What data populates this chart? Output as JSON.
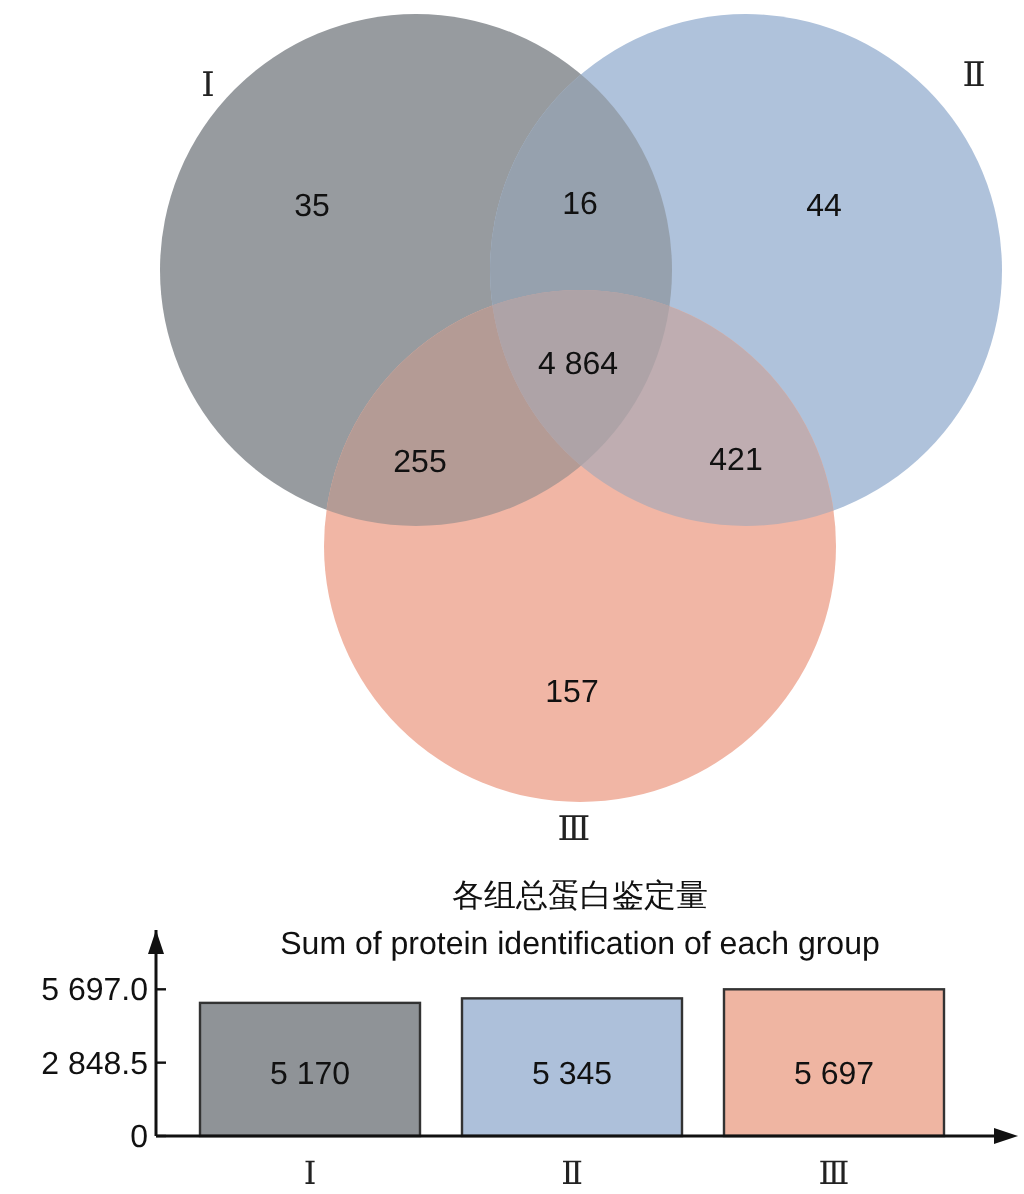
{
  "chart_data": [
    {
      "type": "other",
      "categories": [
        "Ⅰ",
        "Ⅱ",
        "Ⅲ"
      ],
      "colors": [
        "#979b9f",
        "#afc2db",
        "#f1b6a5"
      ],
      "annotations": [
        "35",
        "44",
        "157",
        "16",
        "255",
        "421",
        "4 864"
      ]
    },
    {
      "type": "bar",
      "title": "各组总蛋白鉴定量",
      "subtitle": "Sum of protein identification of each group",
      "categories": [
        "Ⅰ",
        "Ⅱ",
        "Ⅲ"
      ],
      "values": [
        5170,
        5345,
        5697
      ],
      "colors": [
        "#8f9397",
        "#adc0da",
        "#efb5a2"
      ],
      "value_labels": [
        "5 170",
        "5 345",
        "5 697"
      ],
      "ylim": [
        0,
        8000
      ],
      "yticks": [
        {
          "value": 0,
          "label": "0"
        },
        {
          "value": 2848.5,
          "label": "2 848.5"
        },
        {
          "value": 5697,
          "label": "5 697.0"
        }
      ],
      "grid": false
    }
  ]
}
